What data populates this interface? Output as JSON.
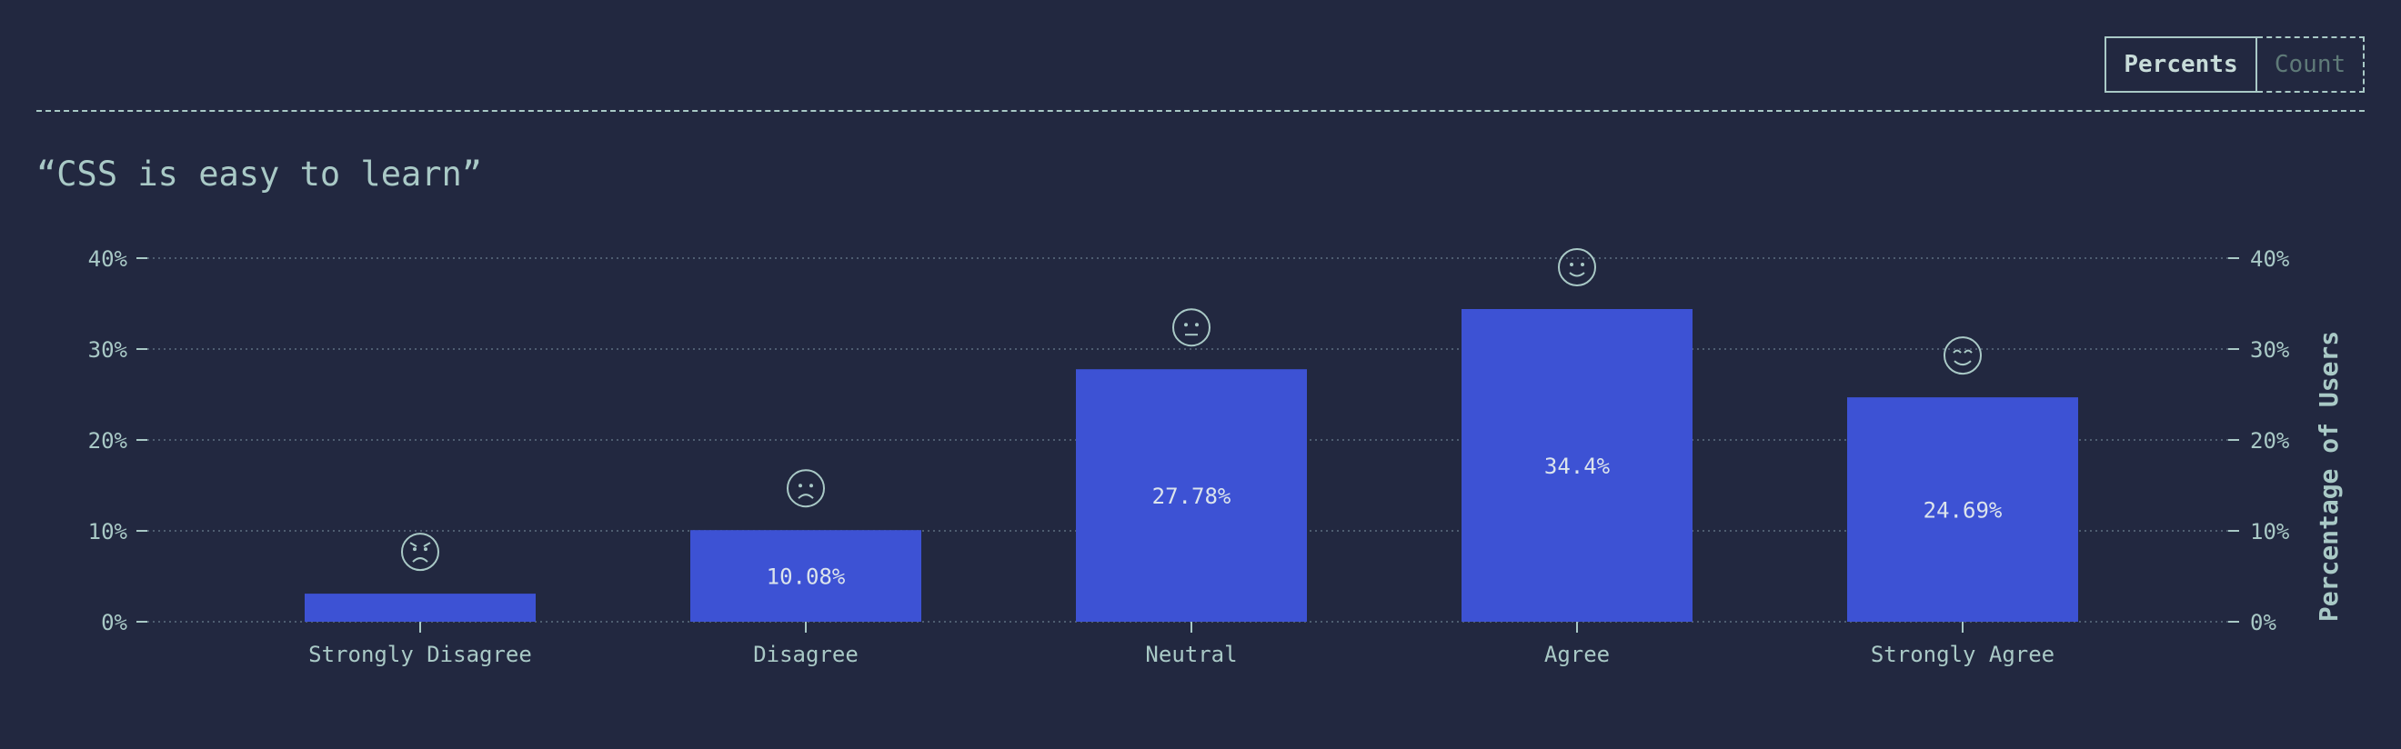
{
  "toggle": {
    "percents_label": "Percents",
    "count_label": "Count",
    "selected": "Percents"
  },
  "colors": {
    "background": "#222840",
    "bar": "#3d52d4",
    "text": "#a9c9c6",
    "bar_label": "#dce4ec"
  },
  "chart_data": {
    "type": "bar",
    "title": "“CSS is easy to learn”",
    "categories": [
      "Strongly Disagree",
      "Disagree",
      "Neutral",
      "Agree",
      "Strongly Agree"
    ],
    "values": [
      3.09,
      10.08,
      27.78,
      34.4,
      24.69
    ],
    "data_labels": [
      "",
      "10.08%",
      "27.78%",
      "34.4%",
      "24.69%"
    ],
    "icons": [
      "angry-face-icon",
      "frowning-face-icon",
      "neutral-face-icon",
      "smiling-face-icon",
      "happy-face-icon"
    ],
    "xlabel": "",
    "ylabel": "Percentage of Users",
    "ylim": [
      0,
      40
    ],
    "yticks": [
      0,
      10,
      20,
      30,
      40
    ],
    "ytick_labels": [
      "0%",
      "10%",
      "20%",
      "30%",
      "40%"
    ],
    "grid": true
  }
}
